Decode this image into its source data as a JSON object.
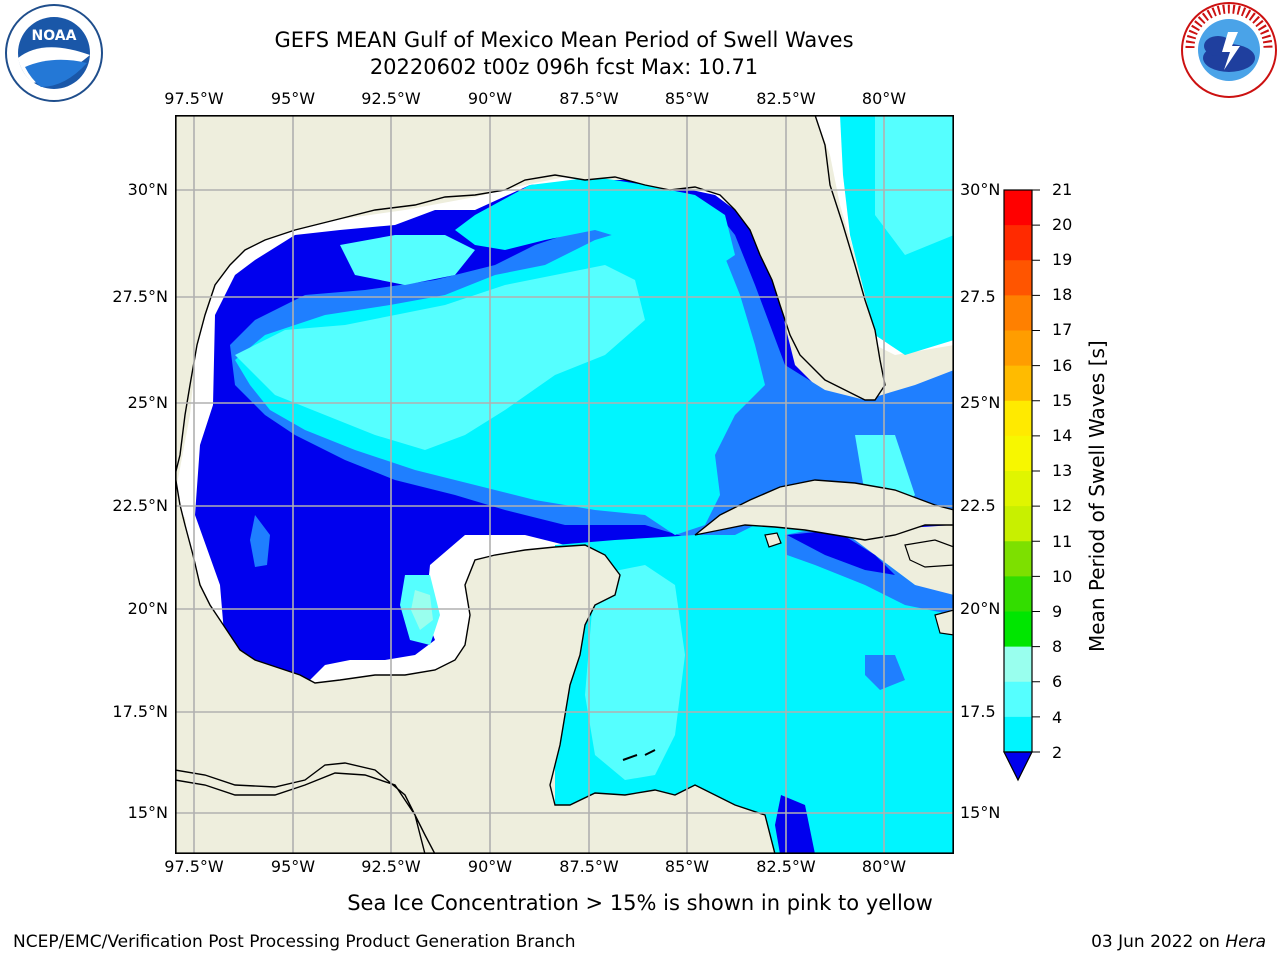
{
  "title": {
    "line1": "GEFS MEAN Gulf of Mexico Mean Period of Swell Waves",
    "line2": "20220602 t00z 096h fcst   Max: 10.71"
  },
  "map": {
    "lon_labels": [
      "97.5°W",
      "95°W",
      "92.5°W",
      "90°W",
      "87.5°W",
      "85°W",
      "82.5°W",
      "80°W"
    ],
    "lat_labels": [
      "30°N",
      "27.5°N",
      "25°N",
      "22.5°N",
      "20°N",
      "17.5°N",
      "15°N"
    ],
    "lat_labels_right": [
      "30°N",
      "27.5",
      "25°N",
      "22.5",
      "20°N",
      "17.5",
      "15°N"
    ],
    "land_color": "#eeeedd",
    "grid_color": "#b0b0b0"
  },
  "colorbar": {
    "title": "Mean Period of Swell Waves [s]",
    "ticks": [
      "21",
      "20",
      "19",
      "18",
      "17",
      "16",
      "15",
      "14",
      "13",
      "12",
      "11",
      "10",
      "9",
      "8",
      "6",
      "4",
      "2"
    ],
    "colors_top_to_bottom": [
      "#ff0000",
      "#ff2a00",
      "#ff5500",
      "#ff8000",
      "#ff9d00",
      "#ffbb00",
      "#ffea00",
      "#f7f700",
      "#e0f500",
      "#c8f000",
      "#7de000",
      "#33dd00",
      "#00e600",
      "#55ff88",
      "#99ffee",
      "#55ffff",
      "#00f5ff",
      "#1f7fff"
    ],
    "extend_color": "#0000ee"
  },
  "caption": "Sea Ice Concentration > 15% is shown in pink to yellow",
  "footer": {
    "left": "NCEP/EMC/Verification Post Processing Product Generation Branch",
    "right_date": "03 Jun 2022 on",
    "right_host": "Hera"
  },
  "logos": {
    "left": "NOAA",
    "right": "NATIONAL WEATHER SERVICE"
  }
}
